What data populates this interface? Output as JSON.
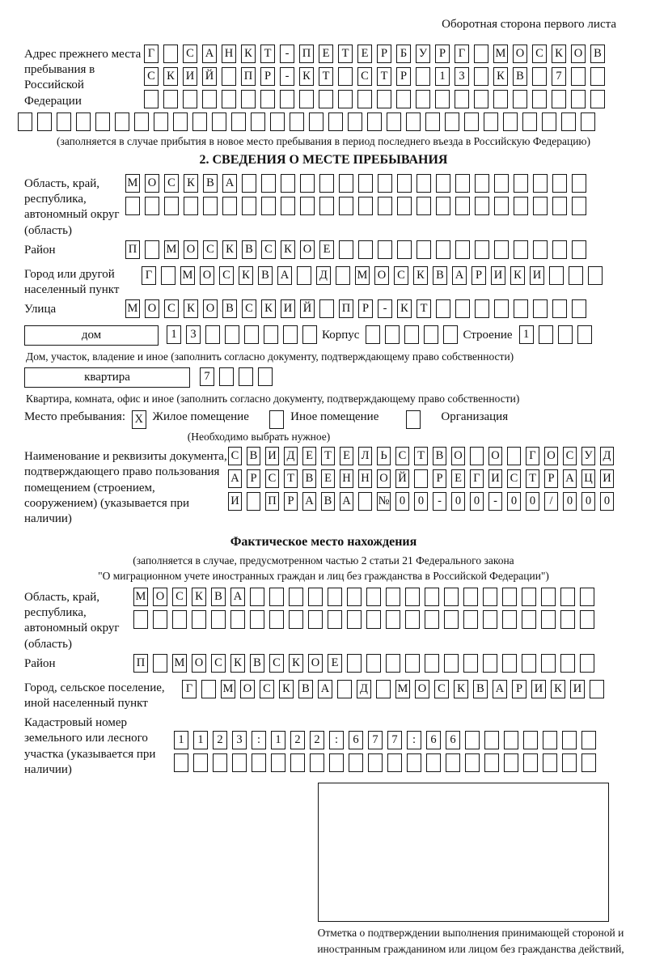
{
  "page": {
    "header": "Оборотная сторона первого листа"
  },
  "prev_address": {
    "label": "Адрес прежнего места пребывания в Российской Федерации",
    "row1": "Г САНКТ-ПЕТЕРБУРГ МОСКОВ",
    "row2": "СКИЙ ПР-КТ СТР 13 КВ 7  ",
    "row3": "                        ",
    "row4": "                              ",
    "note": "(заполняется в случае прибытия в новое место пребывания в период последнего въезда в Российскую Федерацию)"
  },
  "section2": {
    "title": "2. СВЕДЕНИЯ О МЕСТЕ ПРЕБЫВАНИЯ",
    "region": {
      "label": "Область, край, республика, автономный округ (область)",
      "row1": "МОСКВА                  ",
      "row2": "                        "
    },
    "district": {
      "label": "Район",
      "row": "П МОСКВСКОЕ             "
    },
    "city": {
      "label": "Город или другой населенный пункт",
      "row": "Г МОСКВА Д МОСКВАРИКИ   "
    },
    "street": {
      "label": "Улица",
      "row": "МОСКОВСКИЙ ПР-КТ        "
    },
    "house": {
      "box_label": "дом",
      "cells": "13      ",
      "korpus_label": "Корпус",
      "korpus_cells": "     ",
      "stroenie_label": "Строение",
      "stroenie_cells": "1   ",
      "caption": "Дом, участок, владение и иное (заполнить согласно документу, подтверждающему право собственности)"
    },
    "apartment": {
      "box_label": "квартира",
      "cells": "7   ",
      "caption": "Квартира, комната, офис и иное (заполнить согласно документу, подтверждающему право собственности)"
    },
    "stay": {
      "label": "Место пребывания:",
      "mark": "X",
      "option1": "Жилое помещение",
      "option2": "Иное помещение",
      "option3": "Организация",
      "note": "(Необходимо выбрать нужное)"
    },
    "document": {
      "label": "Наименование и реквизиты документа, подтверждающего право пользования помещением (строением, сооружением) (указывается при наличии)",
      "row1": "СВИДЕТЕЛЬСТВО О ГОСУД",
      "row2": "АРСТВЕННОЙ РЕГИСТРАЦИ",
      "row3": "И ПРАВА №00-00-00/000"
    }
  },
  "actual_location": {
    "title": "Фактическое место нахождения",
    "note1": "(заполняется в случае, предусмотренном частью 2 статьи 21 Федерального закона",
    "note2": "\"О миграционном учете иностранных граждан и лиц без гражданства в Российской Федерации\")",
    "region": {
      "label": "Область, край, республика, автономный округ (область)",
      "row1": "МОСКВА                  ",
      "row2": "                        "
    },
    "district": {
      "label": "Район",
      "row": "П МОСКВСКОЕ             "
    },
    "city": {
      "label": "Город, сельское поселение, иной населенный пункт",
      "row": "Г МОСКВА Д МОСКВАРИКИ "
    },
    "cadastral": {
      "label": "Кадастровый номер земельного или лесного участка (указывается при наличии)",
      "row1": "1123:122:677:66       ",
      "row2": "                      "
    },
    "stamp_caption": "Отметка о подтверждении выполнения принимающей стороной и иностранным гражданином или лицом без гражданства действий, необходимых для его постановки на учет по месту пребывания"
  }
}
